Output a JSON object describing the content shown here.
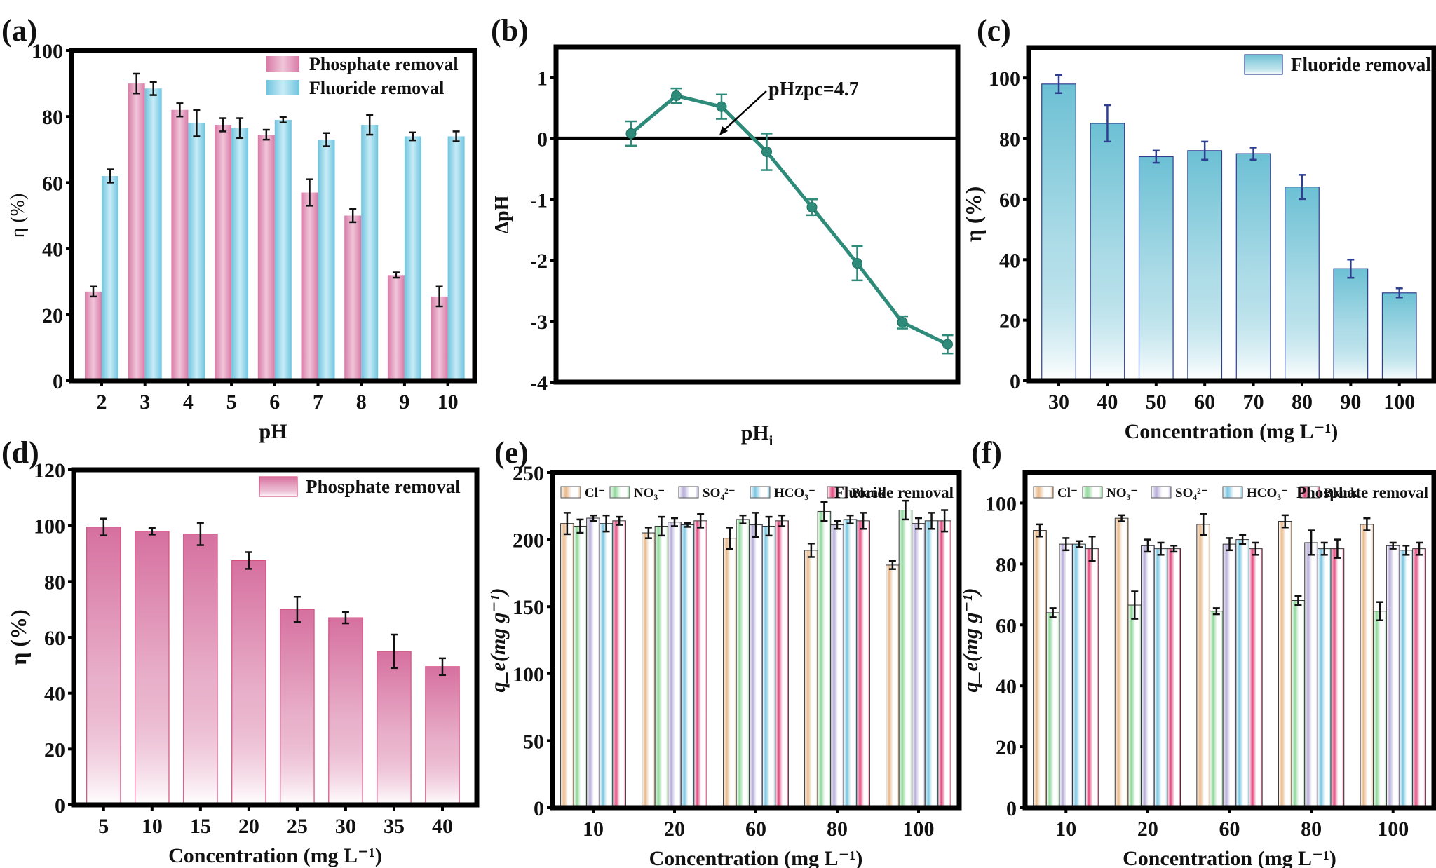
{
  "chart_data": [
    {
      "id": "a",
      "panel_label": "(a)",
      "type": "bar",
      "title": "",
      "xlabel": "pH",
      "ylabel": "η (%)",
      "ylim": [
        0,
        100
      ],
      "yticks": [
        0,
        20,
        40,
        60,
        80,
        100
      ],
      "categories": [
        "2",
        "3",
        "4",
        "5",
        "6",
        "7",
        "8",
        "9",
        "10"
      ],
      "legend_position": "top-right",
      "series": [
        {
          "name": "Phosphate removal",
          "color": "#d97aa6",
          "light": "#f0c6da",
          "values": [
            27,
            90,
            82,
            77.5,
            74.5,
            57,
            50,
            32,
            25.5
          ],
          "errors": [
            1.5,
            3,
            2,
            2,
            1.5,
            4,
            2,
            0.8,
            3
          ]
        },
        {
          "name": "Fluoride removal",
          "color": "#6fc4de",
          "light": "#c8ecf7",
          "values": [
            62,
            88.5,
            78,
            76.5,
            79,
            73,
            77.5,
            74,
            74
          ],
          "errors": [
            2,
            2,
            4,
            3,
            0.8,
            2,
            3,
            1.2,
            1.5
          ]
        }
      ]
    },
    {
      "id": "b",
      "panel_label": "(b)",
      "type": "line",
      "xlabel": "pH",
      "xlabel_sub": "i",
      "ylabel": "ΔpH",
      "ylim": [
        -4,
        1.5
      ],
      "yticks": [
        -4,
        -3,
        -2,
        -1,
        0,
        1
      ],
      "x": [
        1,
        2,
        3,
        4,
        5,
        6,
        7,
        8
      ],
      "series": [
        {
          "name": "ΔpH",
          "color": "#2e8b7a",
          "values": [
            0.08,
            0.7,
            0.52,
            -0.22,
            -1.13,
            -2.05,
            -3.02,
            -3.38
          ],
          "errors": [
            0.2,
            0.12,
            0.2,
            0.3,
            0.13,
            0.28,
            0.1,
            0.15
          ]
        }
      ],
      "annotation": "pHzpc=4.7",
      "reference_line": 0
    },
    {
      "id": "c",
      "panel_label": "(c)",
      "type": "bar",
      "xlabel": "Concentration (mg L⁻¹)",
      "ylabel": "η (%)",
      "ylim": [
        0,
        110
      ],
      "yticks": [
        0,
        20,
        40,
        60,
        80,
        100
      ],
      "categories": [
        "30",
        "40",
        "50",
        "60",
        "70",
        "80",
        "90",
        "100"
      ],
      "legend_position": "top-right",
      "series": [
        {
          "name": "Fluoride removal",
          "color": "#6cc0d4",
          "edge": "#2f3f8f",
          "values": [
            98,
            85,
            74,
            76,
            75,
            64,
            37,
            29
          ],
          "errors": [
            3,
            6,
            2,
            3,
            2,
            4,
            3,
            1.5
          ]
        }
      ]
    },
    {
      "id": "d",
      "panel_label": "(d)",
      "type": "bar",
      "xlabel": "Concentration (mg L⁻¹)",
      "ylabel": "η (%)",
      "ylim": [
        0,
        120
      ],
      "yticks": [
        0,
        20,
        40,
        60,
        80,
        100,
        120
      ],
      "categories": [
        "5",
        "10",
        "15",
        "20",
        "25",
        "30",
        "35",
        "40"
      ],
      "legend_position": "top-right",
      "series": [
        {
          "name": "Phosphate removal",
          "color": "#d6709f",
          "edge": "#d64f80",
          "values": [
            99.5,
            98,
            97,
            87.5,
            70,
            67,
            55,
            49.5
          ],
          "errors": [
            3,
            1.2,
            4,
            3,
            4.5,
            2,
            6,
            3
          ]
        }
      ]
    },
    {
      "id": "e",
      "panel_label": "(e)",
      "type": "bar",
      "xlabel": "Concentration (mg L⁻¹)",
      "ylabel": "q_e(mg g⁻¹)",
      "ylim": [
        0,
        250
      ],
      "yticks": [
        0,
        50,
        100,
        150,
        200,
        250
      ],
      "categories": [
        "10",
        "20",
        "60",
        "80",
        "100"
      ],
      "legend_title": "Fluoride removal",
      "legend_position": "top",
      "series": [
        {
          "name": "Cl⁻",
          "color": "#e8b88a",
          "values": [
            212,
            205,
            201,
            192,
            181
          ],
          "errors": [
            8,
            4,
            8,
            5,
            3
          ]
        },
        {
          "name": "NO₃⁻",
          "color": "#8ed89a",
          "values": [
            210,
            210,
            215,
            221,
            222
          ],
          "errors": [
            5,
            7,
            3,
            7,
            7
          ]
        },
        {
          "name": "SO₄²⁻",
          "color": "#b6acd8",
          "values": [
            216,
            213,
            211,
            211,
            212
          ],
          "errors": [
            2,
            3,
            9,
            3,
            4
          ]
        },
        {
          "name": "HCO₃⁻",
          "color": "#79c6e2",
          "values": [
            212,
            211,
            210,
            215,
            214
          ],
          "errors": [
            6,
            1.5,
            7,
            3,
            6
          ]
        },
        {
          "name": "Blank",
          "color": "#e2487e",
          "values": [
            214,
            214,
            214,
            214,
            214
          ],
          "errors": [
            3,
            5,
            4,
            6,
            8
          ]
        }
      ]
    },
    {
      "id": "f",
      "panel_label": "(f)",
      "type": "bar",
      "xlabel": "Concentration (mg L⁻¹)",
      "ylabel": "q_e(mg g⁻¹)",
      "ylim": [
        0,
        110
      ],
      "yticks": [
        0,
        20,
        40,
        60,
        80,
        100
      ],
      "categories": [
        "10",
        "20",
        "60",
        "80",
        "100"
      ],
      "legend_title": "Phosphate removal",
      "legend_position": "top",
      "series": [
        {
          "name": "Cl⁻",
          "color": "#e8b88a",
          "values": [
            91,
            95,
            93,
            94,
            93
          ],
          "errors": [
            2,
            1,
            3.5,
            2,
            2
          ]
        },
        {
          "name": "NO₃⁻",
          "color": "#8ed89a",
          "values": [
            64,
            66.5,
            64.5,
            68,
            64.5
          ],
          "errors": [
            1.5,
            4.5,
            1,
            1.5,
            3
          ]
        },
        {
          "name": "SO₄²⁻",
          "color": "#b6acd8",
          "values": [
            86.5,
            86,
            86.5,
            87,
            86
          ],
          "errors": [
            2,
            2,
            2,
            4,
            1
          ]
        },
        {
          "name": "HCO₃⁻",
          "color": "#79c6e2",
          "values": [
            86.5,
            85,
            88,
            85,
            84.5
          ],
          "errors": [
            1,
            2,
            1.5,
            2,
            1.5
          ]
        },
        {
          "name": "Blank",
          "color": "#e2487e",
          "values": [
            85,
            85,
            85,
            85,
            85
          ],
          "errors": [
            4,
            1,
            2,
            3,
            2
          ]
        }
      ]
    }
  ]
}
